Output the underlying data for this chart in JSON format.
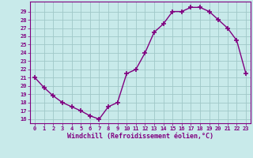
{
  "x": [
    0,
    1,
    2,
    3,
    4,
    5,
    6,
    7,
    8,
    9,
    10,
    11,
    12,
    13,
    14,
    15,
    16,
    17,
    18,
    19,
    20,
    21,
    22,
    23
  ],
  "y": [
    21.0,
    19.8,
    18.8,
    18.0,
    17.5,
    17.0,
    16.4,
    16.0,
    17.5,
    18.0,
    21.5,
    22.0,
    24.0,
    26.5,
    27.5,
    29.0,
    29.0,
    29.5,
    29.5,
    29.0,
    28.0,
    27.0,
    25.5,
    21.5
  ],
  "xlabel": "Windchill (Refroidissement éolien,°C)",
  "xlim": [
    -0.5,
    23.5
  ],
  "ylim": [
    15.5,
    30.2
  ],
  "yticks": [
    16,
    17,
    18,
    19,
    20,
    21,
    22,
    23,
    24,
    25,
    26,
    27,
    28,
    29
  ],
  "xticks": [
    0,
    1,
    2,
    3,
    4,
    5,
    6,
    7,
    8,
    9,
    10,
    11,
    12,
    13,
    14,
    15,
    16,
    17,
    18,
    19,
    20,
    21,
    22,
    23
  ],
  "line_color": "#800080",
  "marker": "+",
  "bg_color": "#c8eaea",
  "grid_color": "#a0c8c8",
  "tick_label_color": "#800080",
  "axis_label_color": "#800080",
  "spine_color": "#800080",
  "font": "monospace"
}
